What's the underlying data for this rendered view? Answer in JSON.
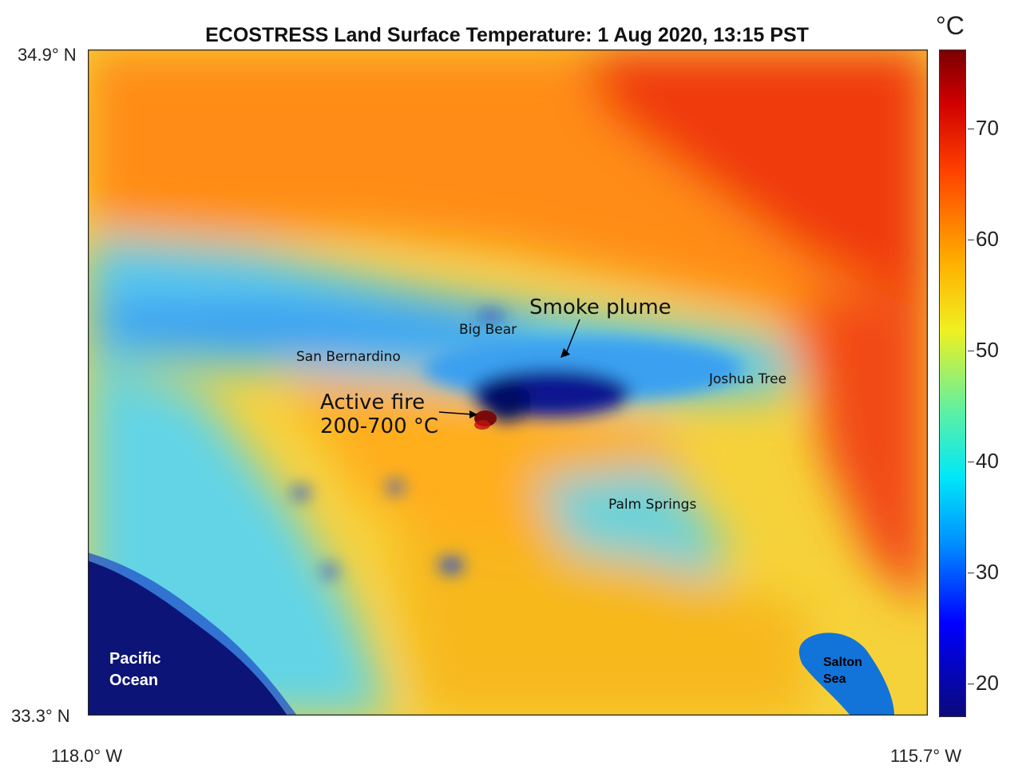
{
  "title": "ECOSTRESS Land Surface Temperature: 1 Aug 2020, 13:15 PST",
  "lat_top": "34.9° N",
  "lat_bottom": "33.3° N",
  "lon_left": "118.0° W",
  "lon_right": "115.7° W",
  "labels": {
    "smoke": "Smoke plume",
    "big_bear": "Big Bear",
    "san_bernardino": "San Bernardino",
    "joshua_tree": "Joshua Tree",
    "fire_line1": "Active fire",
    "fire_line2": "200-700 °C",
    "palm_springs": "Palm Springs",
    "pacific_line1": "Pacific",
    "pacific_line2": "Ocean",
    "salton_line1": "Salton",
    "salton_line2": "Sea"
  },
  "colorbar": {
    "unit": "°C",
    "ticks": [
      "70",
      "60",
      "50",
      "40",
      "30",
      "20"
    ],
    "colors": [
      "#0a0a7a",
      "#0000ff",
      "#00e8f8",
      "#f0f020",
      "#ff4000",
      "#7a0000"
    ]
  }
}
